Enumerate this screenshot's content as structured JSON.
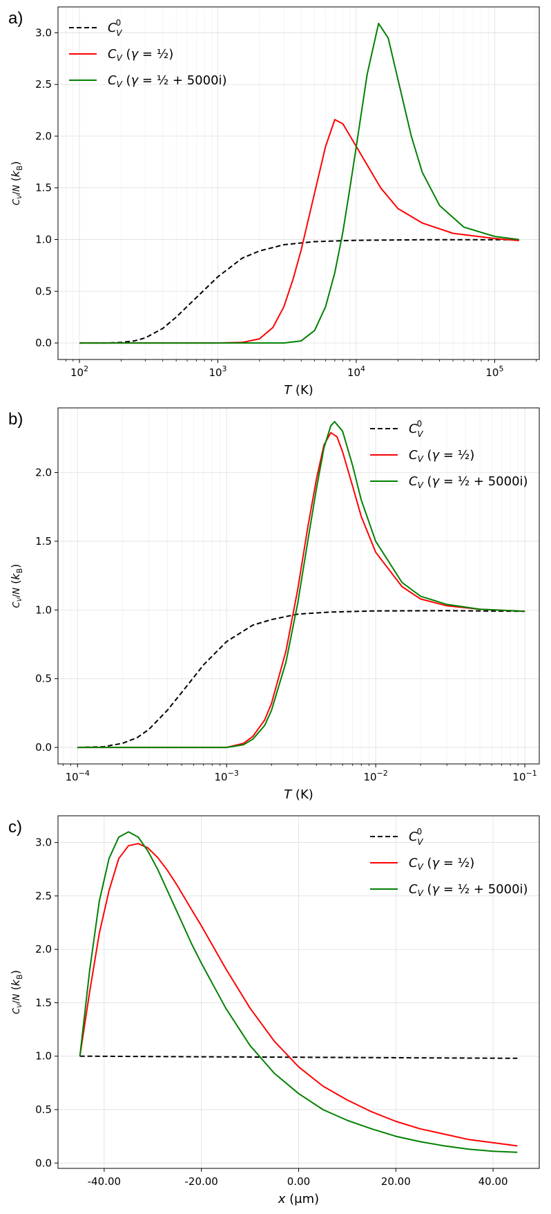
{
  "colors": {
    "c0": "#000000",
    "half": "#ff0000",
    "complex": "#008000"
  },
  "chart_data": [
    {
      "type": "line",
      "panel_label": "a)",
      "xscale": "log",
      "xlim": [
        70,
        210000
      ],
      "ylim": [
        -0.16,
        3.25
      ],
      "xticks": [
        {
          "v": 100,
          "b": "10",
          "e": "2"
        },
        {
          "v": 1000,
          "b": "10",
          "e": "3"
        },
        {
          "v": 10000,
          "b": "10",
          "e": "4"
        },
        {
          "v": 100000,
          "b": "10",
          "e": "5"
        }
      ],
      "yticks": [
        0.0,
        0.5,
        1.0,
        1.5,
        2.0,
        2.5,
        3.0
      ],
      "xlabel_var": "T",
      "xlabel_unit": " (K)",
      "ylabel": "C_V/N (k_B)",
      "legend_position": "top-left",
      "series": [
        {
          "name": "C_V^0",
          "style": "dashed",
          "color": "#000000",
          "x": [
            100,
            150,
            200,
            250,
            300,
            400,
            500,
            700,
            1000,
            1500,
            2000,
            3000,
            5000,
            10000,
            30000,
            150000
          ],
          "y": [
            0.0,
            0.0,
            0.005,
            0.02,
            0.05,
            0.14,
            0.25,
            0.44,
            0.64,
            0.82,
            0.89,
            0.95,
            0.98,
            0.993,
            0.998,
            0.999
          ]
        },
        {
          "name": "C_V (γ = 1/2)",
          "style": "solid",
          "color": "#ff0000",
          "x": [
            100,
            1000,
            1500,
            2000,
            2500,
            3000,
            3500,
            4000,
            5000,
            6000,
            7000,
            8000,
            10000,
            15000,
            20000,
            30000,
            50000,
            100000,
            150000
          ],
          "y": [
            0.0,
            0.0,
            0.005,
            0.04,
            0.15,
            0.35,
            0.62,
            0.9,
            1.45,
            1.9,
            2.16,
            2.12,
            1.9,
            1.5,
            1.3,
            1.16,
            1.06,
            1.01,
            0.99
          ]
        },
        {
          "name": "C_V (γ = 1/2 + 5000i)",
          "style": "solid",
          "color": "#008000",
          "x": [
            100,
            3000,
            4000,
            5000,
            6000,
            7000,
            8000,
            9000,
            10000,
            12000,
            14500,
            17000,
            20000,
            25000,
            30000,
            40000,
            60000,
            100000,
            150000
          ],
          "y": [
            0.0,
            0.0,
            0.02,
            0.12,
            0.35,
            0.68,
            1.07,
            1.5,
            1.9,
            2.6,
            3.09,
            2.95,
            2.55,
            2.0,
            1.65,
            1.33,
            1.12,
            1.03,
            1.0
          ]
        }
      ],
      "legend": [
        "C_V^0",
        "C_V (γ = 1/2)",
        "C_V (γ = 1/2 + 5000i)"
      ]
    },
    {
      "type": "line",
      "panel_label": "b)",
      "xscale": "log",
      "xlim": [
        7.4e-05,
        0.125
      ],
      "ylim": [
        -0.12,
        2.47
      ],
      "xticks": [
        {
          "v": 0.0001,
          "b": "10",
          "e": "−4"
        },
        {
          "v": 0.001,
          "b": "10",
          "e": "−3"
        },
        {
          "v": 0.01,
          "b": "10",
          "e": "−2"
        },
        {
          "v": 0.1,
          "b": "10",
          "e": "−1"
        }
      ],
      "yticks": [
        0.0,
        0.5,
        1.0,
        1.5,
        2.0
      ],
      "xlabel_var": "T",
      "xlabel_unit": " (K)",
      "ylabel": "C_V/N (k_B)",
      "legend_position": "top-right",
      "series": [
        {
          "name": "C_V^0",
          "style": "dashed",
          "color": "#000000",
          "x": [
            0.0001,
            0.00015,
            0.0002,
            0.00025,
            0.0003,
            0.0004,
            0.0005,
            0.0007,
            0.001,
            0.0015,
            0.002,
            0.003,
            0.005,
            0.01,
            0.03,
            0.1
          ],
          "y": [
            0.0,
            0.005,
            0.03,
            0.07,
            0.13,
            0.27,
            0.4,
            0.6,
            0.77,
            0.89,
            0.93,
            0.97,
            0.985,
            0.993,
            0.995,
            0.99
          ]
        },
        {
          "name": "C_V (γ = 1/2)",
          "style": "solid",
          "color": "#ff0000",
          "x": [
            0.0001,
            0.001,
            0.0013,
            0.0015,
            0.0018,
            0.002,
            0.0025,
            0.003,
            0.0035,
            0.004,
            0.0045,
            0.005,
            0.0055,
            0.006,
            0.007,
            0.008,
            0.01,
            0.015,
            0.02,
            0.03,
            0.05,
            0.1
          ],
          "y": [
            0.0,
            0.0,
            0.03,
            0.08,
            0.2,
            0.32,
            0.7,
            1.15,
            1.6,
            1.95,
            2.2,
            2.29,
            2.26,
            2.15,
            1.9,
            1.68,
            1.42,
            1.17,
            1.08,
            1.03,
            1.005,
            0.99
          ]
        },
        {
          "name": "C_V (γ = 1/2 + 5000i)",
          "style": "solid",
          "color": "#008000",
          "x": [
            0.0001,
            0.001,
            0.0013,
            0.0015,
            0.0018,
            0.002,
            0.0025,
            0.003,
            0.0035,
            0.004,
            0.0045,
            0.005,
            0.0053,
            0.006,
            0.007,
            0.008,
            0.01,
            0.015,
            0.02,
            0.03,
            0.05,
            0.1
          ],
          "y": [
            0.0,
            0.0,
            0.02,
            0.06,
            0.16,
            0.27,
            0.62,
            1.05,
            1.5,
            1.88,
            2.18,
            2.34,
            2.37,
            2.3,
            2.05,
            1.8,
            1.5,
            1.2,
            1.1,
            1.04,
            1.005,
            0.99
          ]
        }
      ],
      "legend": [
        "C_V^0",
        "C_V (γ = 1/2)",
        "C_V (γ = 1/2 + 5000i)"
      ]
    },
    {
      "type": "line",
      "panel_label": "c)",
      "xscale": "linear",
      "xlim": [
        -49.5,
        49.5
      ],
      "ylim": [
        -0.05,
        3.25
      ],
      "xticks": [
        {
          "v": -40,
          "t": "-40.00"
        },
        {
          "v": -20,
          "t": "-20.00"
        },
        {
          "v": 0,
          "t": "0.00"
        },
        {
          "v": 20,
          "t": "20.00"
        },
        {
          "v": 40,
          "t": "40.00"
        }
      ],
      "yticks": [
        0.0,
        0.5,
        1.0,
        1.5,
        2.0,
        2.5,
        3.0
      ],
      "xlabel_var": "x",
      "xlabel_unit": " (μm)",
      "ylabel": "C_V/N (k_B)",
      "legend_position": "top-right",
      "series": [
        {
          "name": "C_V^0",
          "style": "dashed",
          "color": "#000000",
          "x": [
            -45,
            0,
            45
          ],
          "y": [
            1.0,
            0.99,
            0.98
          ]
        },
        {
          "name": "C_V (γ = 1/2)",
          "style": "solid",
          "color": "#ff0000",
          "x": [
            -45,
            -43,
            -41,
            -39,
            -37,
            -35,
            -33,
            -31,
            -29,
            -27,
            -25,
            -22,
            -20,
            -15,
            -10,
            -5,
            0,
            5,
            10,
            15,
            20,
            25,
            30,
            35,
            40,
            45
          ],
          "y": [
            1.0,
            1.6,
            2.15,
            2.55,
            2.85,
            2.97,
            2.99,
            2.95,
            2.86,
            2.74,
            2.6,
            2.37,
            2.22,
            1.82,
            1.45,
            1.14,
            0.9,
            0.72,
            0.59,
            0.48,
            0.39,
            0.32,
            0.27,
            0.22,
            0.19,
            0.16
          ]
        },
        {
          "name": "C_V (γ = 1/2 + 5000i)",
          "style": "solid",
          "color": "#008000",
          "x": [
            -45,
            -43,
            -41,
            -39,
            -37,
            -35,
            -33,
            -31,
            -29,
            -27,
            -25,
            -22,
            -20,
            -15,
            -10,
            -5,
            0,
            5,
            10,
            15,
            20,
            25,
            30,
            35,
            40,
            45
          ],
          "y": [
            1.0,
            1.8,
            2.45,
            2.85,
            3.05,
            3.1,
            3.05,
            2.92,
            2.75,
            2.55,
            2.35,
            2.05,
            1.87,
            1.45,
            1.1,
            0.84,
            0.65,
            0.5,
            0.4,
            0.32,
            0.25,
            0.2,
            0.16,
            0.13,
            0.11,
            0.1
          ]
        }
      ],
      "legend": [
        "C_V^0",
        "C_V (γ = 1/2)",
        "C_V (γ = 1/2 + 5000i)"
      ]
    }
  ]
}
